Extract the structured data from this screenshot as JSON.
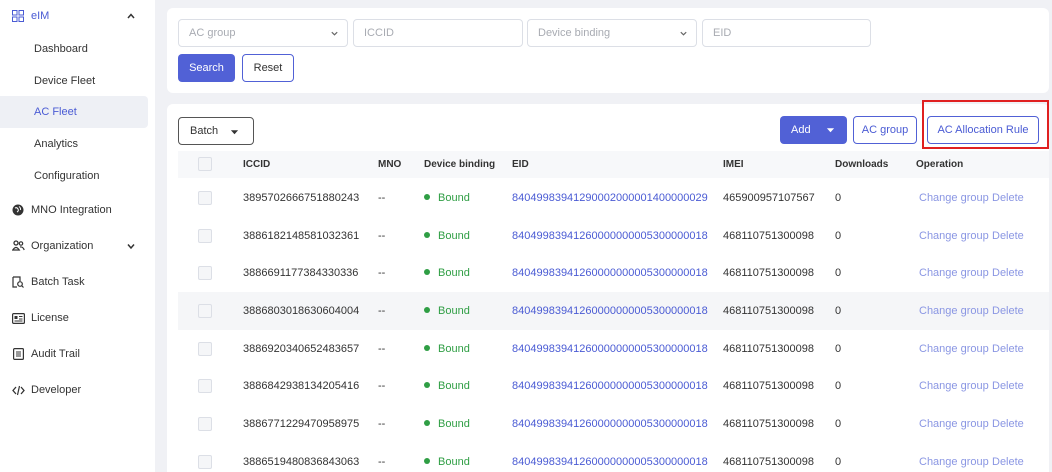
{
  "sidebar": {
    "items": [
      {
        "label": "eIM",
        "icon": "grid-icon",
        "expanded": true
      },
      {
        "label": "Dashboard"
      },
      {
        "label": "Device Fleet"
      },
      {
        "label": "AC Fleet",
        "active": true
      },
      {
        "label": "Analytics"
      },
      {
        "label": "Configuration"
      },
      {
        "label": "MNO Integration",
        "icon": "globe-icon"
      },
      {
        "label": "Organization",
        "icon": "organization-icon",
        "expanded": false
      },
      {
        "label": "Batch Task",
        "icon": "batch-task-icon"
      },
      {
        "label": "License",
        "icon": "license-icon"
      },
      {
        "label": "Audit Trail",
        "icon": "audit-trail-icon"
      },
      {
        "label": "Developer",
        "icon": "code-icon"
      }
    ]
  },
  "filters": {
    "ac_group_placeholder": "AC group",
    "iccid_placeholder": "ICCID",
    "device_binding_placeholder": "Device binding",
    "eid_placeholder": "EID",
    "search_label": "Search",
    "reset_label": "Reset"
  },
  "toolbar": {
    "batch_label": "Batch",
    "add_label": "Add",
    "ac_group_label": "AC group",
    "ac_allocation_rule_label": "AC Allocation Rule"
  },
  "table": {
    "headers": {
      "iccid": "ICCID",
      "mno": "MNO",
      "device_binding": "Device binding",
      "eid": "EID",
      "imei": "IMEI",
      "downloads": "Downloads",
      "operation": "Operation"
    },
    "change_group_label": "Change group",
    "delete_label": "Delete",
    "rows": [
      {
        "iccid": "3895702666751880243",
        "mno": "--",
        "binding": "Bound",
        "eid": "84049983941290002000001400000029",
        "imei": "465900957107567",
        "downloads": "0"
      },
      {
        "iccid": "3886182148581032361",
        "mno": "--",
        "binding": "Bound",
        "eid": "84049983941260000000005300000018",
        "imei": "468110751300098",
        "downloads": "0"
      },
      {
        "iccid": "3886691177384330336",
        "mno": "--",
        "binding": "Bound",
        "eid": "84049983941260000000005300000018",
        "imei": "468110751300098",
        "downloads": "0"
      },
      {
        "iccid": "3886803018630604004",
        "mno": "--",
        "binding": "Bound",
        "eid": "84049983941260000000005300000018",
        "imei": "468110751300098",
        "downloads": "0"
      },
      {
        "iccid": "3886920340652483657",
        "mno": "--",
        "binding": "Bound",
        "eid": "84049983941260000000005300000018",
        "imei": "468110751300098",
        "downloads": "0"
      },
      {
        "iccid": "3886842938134205416",
        "mno": "--",
        "binding": "Bound",
        "eid": "84049983941260000000005300000018",
        "imei": "468110751300098",
        "downloads": "0"
      },
      {
        "iccid": "3886771229470958975",
        "mno": "--",
        "binding": "Bound",
        "eid": "84049983941260000000005300000018",
        "imei": "468110751300098",
        "downloads": "0"
      },
      {
        "iccid": "3886519480836843063",
        "mno": "--",
        "binding": "Bound",
        "eid": "84049983941260000000005300000018",
        "imei": "468110751300098",
        "downloads": "0"
      }
    ]
  },
  "colors": {
    "primary": "#5161d6",
    "bound_green": "#2f9e44",
    "highlight_red": "#e02020"
  }
}
